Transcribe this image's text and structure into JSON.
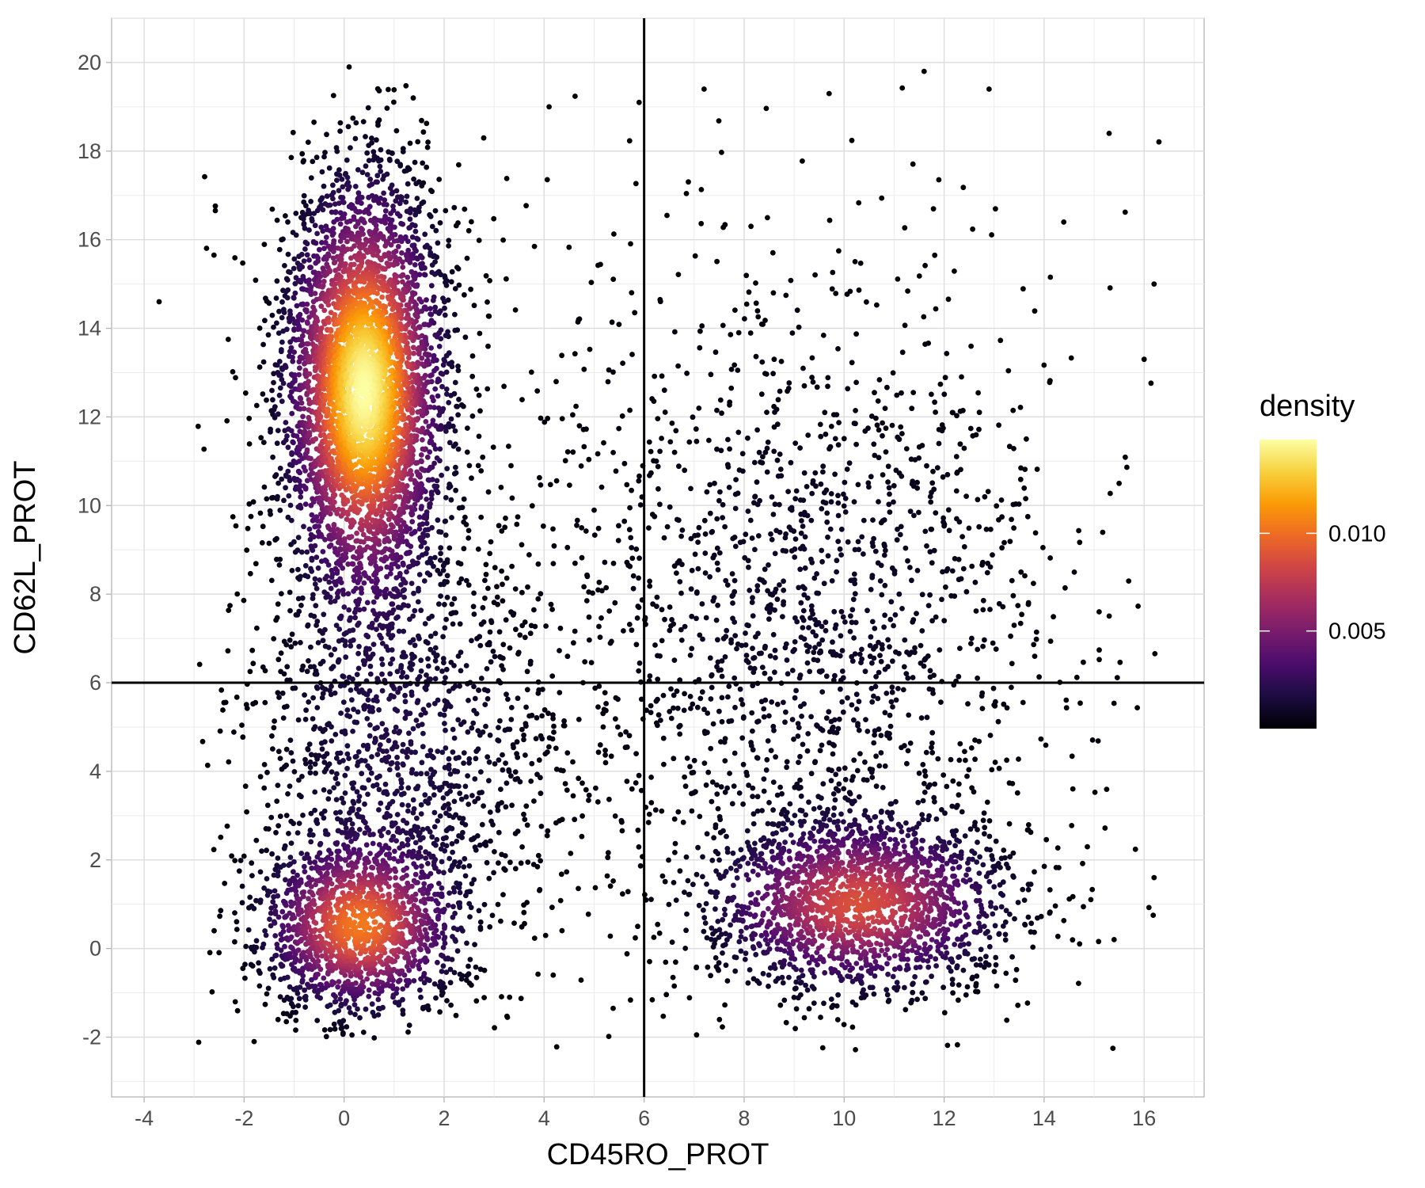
{
  "chart_data": {
    "type": "scatter",
    "xlabel": "CD45RO_PROT",
    "ylabel": "CD62L_PROT",
    "xlim": [
      -4.65,
      17.2
    ],
    "ylim": [
      -3.35,
      21.0
    ],
    "x_ticks": [
      -4,
      -2,
      0,
      2,
      4,
      6,
      8,
      10,
      12,
      14,
      16
    ],
    "y_ticks": [
      -2,
      0,
      2,
      4,
      6,
      8,
      10,
      12,
      14,
      16,
      18,
      20
    ],
    "x_tick_labels": [
      "-4",
      "-2",
      "0",
      "2",
      "4",
      "6",
      "8",
      "10",
      "12",
      "14",
      "16"
    ],
    "y_tick_labels": [
      "-2",
      "0",
      "2",
      "4",
      "6",
      "8",
      "10",
      "12",
      "14",
      "16",
      "18",
      "20"
    ],
    "grid": true,
    "reference_lines": {
      "vertical_x": 6,
      "horizontal_y": 6
    },
    "color_by": "density",
    "clusters": [
      {
        "center": [
          0.4,
          12.6
        ],
        "sd": [
          0.8,
          2.4
        ],
        "weight": 0.4
      },
      {
        "center": [
          0.3,
          0.5
        ],
        "sd": [
          1.0,
          1.0
        ],
        "weight": 0.14
      },
      {
        "center": [
          10.3,
          1.0
        ],
        "sd": [
          1.5,
          1.0
        ],
        "weight": 0.18
      },
      {
        "center": [
          1.0,
          4.5
        ],
        "sd": [
          1.6,
          2.5
        ],
        "weight": 0.1
      },
      {
        "center": [
          9.6,
          7.5
        ],
        "sd": [
          2.6,
          3.8
        ],
        "weight": 0.13
      },
      {
        "center": [
          5.5,
          7.5
        ],
        "sd": [
          4.5,
          5.5
        ],
        "weight": 0.05
      }
    ],
    "n_points": 11000,
    "outlier_points": [
      {
        "x": 0.1,
        "y": 19.9
      },
      {
        "x": -3.7,
        "y": 14.6
      },
      {
        "x": 11.6,
        "y": 19.8
      },
      {
        "x": 16.2,
        "y": 1.6
      },
      {
        "x": 16.2,
        "y": 15.0
      },
      {
        "x": 16.0,
        "y": 13.3
      },
      {
        "x": 15.3,
        "y": 18.4
      },
      {
        "x": -2.6,
        "y": 0.4
      },
      {
        "x": -1.8,
        "y": -2.1
      },
      {
        "x": 12.9,
        "y": 19.4
      },
      {
        "x": 7.2,
        "y": 19.4
      },
      {
        "x": 9.7,
        "y": 19.3
      },
      {
        "x": 4.1,
        "y": 19.0
      },
      {
        "x": 5.9,
        "y": 19.1
      },
      {
        "x": 15.5,
        "y": 10.5
      },
      {
        "x": 15.1,
        "y": 7.6
      },
      {
        "x": 15.4,
        "y": 0.2
      }
    ],
    "legend": {
      "title": "density",
      "position": "right",
      "labels": [
        "0.010",
        "0.005"
      ],
      "label_values": [
        0.01,
        0.005
      ],
      "range": [
        0.0,
        0.0148
      ]
    },
    "colormap": [
      "#000004",
      "#1b0c41",
      "#4a0c6b",
      "#781c6d",
      "#a52c60",
      "#cf4446",
      "#ed6925",
      "#fb9b06",
      "#f7d13d",
      "#fcffa4"
    ]
  }
}
